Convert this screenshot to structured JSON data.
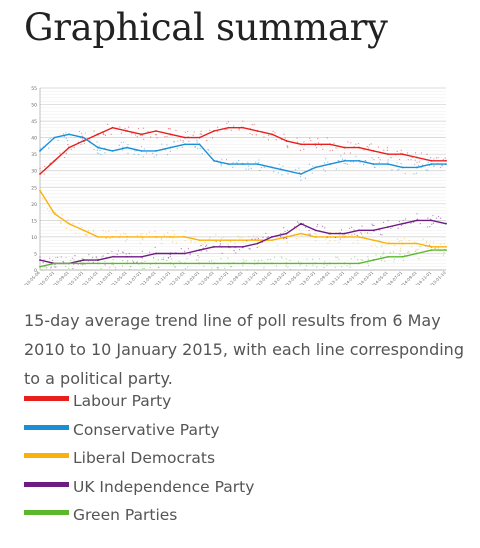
{
  "page": {
    "title": "Graphical summary"
  },
  "caption": "15-day average trend line of poll results from 6 May 2010 to 10 January 2015, with each line corresponding to a political party.",
  "chart_data": {
    "type": "line",
    "title": "",
    "xlabel": "",
    "ylabel": "",
    "ylim": [
      0,
      55
    ],
    "yticks": [
      0,
      5,
      10,
      15,
      20,
      25,
      30,
      35,
      40,
      45,
      50,
      55
    ],
    "grid": true,
    "x": [
      "2010-05-06",
      "2010-07-01",
      "2010-09-01",
      "2010-11-01",
      "2011-01-01",
      "2011-03-01",
      "2011-05-01",
      "2011-07-01",
      "2011-09-01",
      "2011-11-01",
      "2012-01-01",
      "2012-03-01",
      "2012-05-01",
      "2012-07-01",
      "2012-09-01",
      "2012-11-01",
      "2013-01-01",
      "2013-03-01",
      "2013-05-01",
      "2013-07-01",
      "2013-09-01",
      "2013-11-01",
      "2014-01-01",
      "2014-03-01",
      "2014-05-01",
      "2014-07-01",
      "2014-09-01",
      "2014-11-01",
      "2015-01-10"
    ],
    "series": [
      {
        "name": "Labour Party",
        "color": "#e8201c",
        "values": [
          29,
          33,
          37,
          39,
          41,
          43,
          42,
          41,
          42,
          41,
          40,
          40,
          42,
          43,
          43,
          42,
          41,
          39,
          38,
          38,
          38,
          37,
          37,
          36,
          35,
          35,
          34,
          33,
          33
        ]
      },
      {
        "name": "Conservative Party",
        "color": "#1a8fd8",
        "values": [
          36,
          40,
          41,
          40,
          37,
          36,
          37,
          36,
          36,
          37,
          38,
          38,
          33,
          32,
          32,
          32,
          31,
          30,
          29,
          31,
          32,
          33,
          33,
          32,
          32,
          31,
          31,
          32,
          32
        ]
      },
      {
        "name": "Liberal Democrats",
        "color": "#fbb10d",
        "values": [
          24,
          17,
          14,
          12,
          10,
          10,
          10,
          10,
          10,
          10,
          10,
          9,
          9,
          9,
          9,
          9,
          9,
          10,
          11,
          10,
          10,
          10,
          10,
          9,
          8,
          8,
          8,
          7,
          7
        ]
      },
      {
        "name": "UK Independence Party",
        "color": "#6e1b82",
        "values": [
          3,
          2,
          2,
          3,
          3,
          4,
          4,
          4,
          5,
          5,
          5,
          6,
          7,
          7,
          7,
          8,
          10,
          11,
          14,
          12,
          11,
          11,
          12,
          12,
          13,
          14,
          15,
          15,
          14
        ]
      },
      {
        "name": "Green Parties",
        "color": "#5cb72d",
        "values": [
          1,
          2,
          2,
          2,
          2,
          2,
          2,
          2,
          2,
          2,
          2,
          2,
          2,
          2,
          2,
          2,
          2,
          2,
          2,
          2,
          2,
          2,
          2,
          3,
          4,
          4,
          5,
          6,
          6
        ]
      }
    ],
    "legend": [
      {
        "label": "Labour Party",
        "color": "#e8201c"
      },
      {
        "label": "Conservative Party",
        "color": "#1a8fd8"
      },
      {
        "label": "Liberal Democrats",
        "color": "#fbb10d"
      },
      {
        "label": "UK Independence Party",
        "color": "#6e1b82"
      },
      {
        "label": "Green Parties",
        "color": "#5cb72d"
      }
    ]
  }
}
